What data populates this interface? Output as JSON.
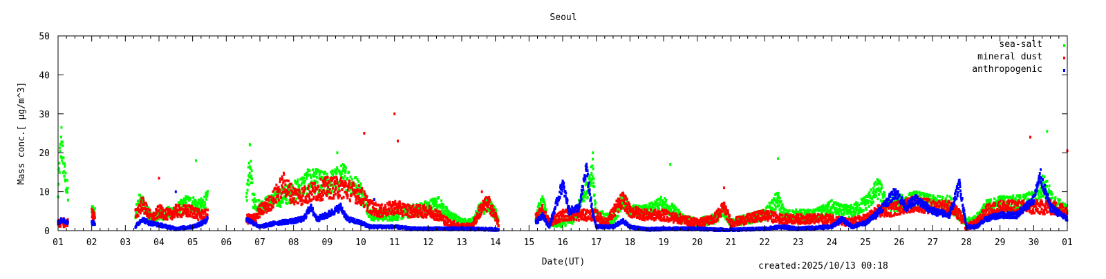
{
  "chart_data": {
    "type": "scatter",
    "title": "Seoul",
    "xlabel": "Date(UT)",
    "ylabel": "Mass conc.[ μg/m^3]",
    "footer": "created:2025/10/13 00:18",
    "xlim": [
      1,
      31
    ],
    "ylim": [
      0,
      50
    ],
    "yticks": [
      0,
      10,
      20,
      30,
      40,
      50
    ],
    "xtick_labels": [
      "01",
      "02",
      "03",
      "04",
      "05",
      "06",
      "07",
      "08",
      "09",
      "10",
      "11",
      "12",
      "13",
      "14",
      "15",
      "16",
      "17",
      "18",
      "19",
      "20",
      "21",
      "22",
      "23",
      "24",
      "25",
      "26",
      "27",
      "28",
      "29",
      "30",
      "01"
    ],
    "grid": false,
    "legend_position": "top-right",
    "series": [
      {
        "name": "sea-salt",
        "color": "#00ff00",
        "segments": [
          [
            [
              1.0,
              8
            ],
            [
              1.05,
              18
            ],
            [
              1.1,
              22
            ],
            [
              1.2,
              14
            ],
            [
              1.3,
              9
            ]
          ],
          [
            [
              2.0,
              5
            ],
            [
              2.1,
              5
            ]
          ],
          [
            [
              3.3,
              4
            ],
            [
              3.4,
              8
            ],
            [
              3.5,
              7
            ],
            [
              3.8,
              3
            ],
            [
              4.0,
              4
            ],
            [
              4.5,
              5
            ],
            [
              4.8,
              7
            ],
            [
              5.0,
              7
            ],
            [
              5.2,
              6
            ],
            [
              5.45,
              8
            ]
          ],
          [
            [
              6.6,
              8
            ],
            [
              6.7,
              18
            ],
            [
              6.8,
              8
            ],
            [
              7.0,
              6
            ],
            [
              7.5,
              8
            ],
            [
              8.0,
              10
            ],
            [
              8.5,
              13
            ],
            [
              9.0,
              12
            ],
            [
              9.5,
              14
            ],
            [
              10.0,
              10
            ],
            [
              10.3,
              4
            ],
            [
              10.6,
              4
            ],
            [
              11.0,
              4
            ],
            [
              11.5,
              5
            ],
            [
              12.0,
              6
            ],
            [
              12.3,
              7
            ],
            [
              12.6,
              4
            ],
            [
              13.0,
              2
            ],
            [
              13.3,
              2
            ],
            [
              13.5,
              5
            ],
            [
              13.8,
              7
            ],
            [
              14.1,
              3
            ]
          ],
          [
            [
              15.2,
              4
            ],
            [
              15.4,
              7
            ],
            [
              15.6,
              2
            ],
            [
              16.0,
              2
            ],
            [
              16.3,
              3
            ],
            [
              16.6,
              8
            ],
            [
              16.9,
              15
            ],
            [
              17.0,
              4
            ],
            [
              17.5,
              3
            ],
            [
              17.8,
              8
            ],
            [
              18.0,
              5
            ],
            [
              18.5,
              5
            ],
            [
              19.0,
              7
            ],
            [
              19.3,
              5
            ],
            [
              19.6,
              3
            ],
            [
              20.0,
              2
            ],
            [
              20.5,
              3
            ],
            [
              20.8,
              5
            ],
            [
              21.0,
              2
            ],
            [
              21.5,
              3
            ],
            [
              22.0,
              4
            ],
            [
              22.4,
              8
            ],
            [
              22.6,
              4
            ],
            [
              23.0,
              4
            ],
            [
              23.5,
              4
            ],
            [
              24.0,
              6
            ],
            [
              24.3,
              5
            ],
            [
              24.6,
              5
            ],
            [
              25.0,
              7
            ],
            [
              25.4,
              11
            ],
            [
              25.6,
              7
            ],
            [
              26.0,
              7
            ],
            [
              26.5,
              8
            ],
            [
              27.0,
              7
            ],
            [
              27.5,
              7
            ],
            [
              27.8,
              4
            ],
            [
              28.0,
              2
            ],
            [
              28.3,
              3
            ],
            [
              28.6,
              6
            ],
            [
              29.0,
              7
            ],
            [
              29.5,
              7
            ],
            [
              30.0,
              8
            ],
            [
              30.3,
              12
            ],
            [
              30.6,
              7
            ],
            [
              31.0,
              5
            ]
          ]
        ],
        "outliers": [
          [
            1.1,
            26.5
          ],
          [
            5.1,
            18
          ],
          [
            6.7,
            22
          ],
          [
            9.3,
            20
          ],
          [
            16.9,
            20
          ],
          [
            19.2,
            17
          ],
          [
            22.4,
            18.5
          ],
          [
            30.4,
            25.5
          ]
        ]
      },
      {
        "name": "mineral dust",
        "color": "#ff0000",
        "segments": [
          [
            [
              1.0,
              2
            ],
            [
              1.3,
              2
            ]
          ],
          [
            [
              2.0,
              5
            ],
            [
              2.1,
              3
            ]
          ],
          [
            [
              3.3,
              4
            ],
            [
              3.5,
              7
            ],
            [
              3.8,
              3
            ],
            [
              4.0,
              5
            ],
            [
              4.3,
              4
            ],
            [
              4.5,
              5
            ],
            [
              5.0,
              5
            ],
            [
              5.2,
              4
            ],
            [
              5.45,
              4
            ]
          ],
          [
            [
              6.6,
              3
            ],
            [
              6.8,
              3
            ],
            [
              7.0,
              5
            ],
            [
              7.3,
              7
            ],
            [
              7.7,
              12
            ],
            [
              8.0,
              9
            ],
            [
              8.3,
              9
            ],
            [
              8.6,
              10
            ],
            [
              9.0,
              11
            ],
            [
              9.5,
              11
            ],
            [
              10.0,
              9
            ],
            [
              10.3,
              6
            ],
            [
              10.6,
              5
            ],
            [
              11.0,
              6
            ],
            [
              11.5,
              5
            ],
            [
              12.0,
              5
            ],
            [
              12.3,
              4
            ],
            [
              12.6,
              2
            ],
            [
              13.0,
              1
            ],
            [
              13.3,
              1
            ],
            [
              13.6,
              6
            ],
            [
              13.8,
              7
            ],
            [
              14.1,
              2
            ]
          ],
          [
            [
              15.2,
              3
            ],
            [
              15.4,
              5
            ],
            [
              15.6,
              2
            ],
            [
              16.0,
              4
            ],
            [
              16.5,
              4
            ],
            [
              17.0,
              4
            ],
            [
              17.3,
              2
            ],
            [
              17.6,
              6
            ],
            [
              17.8,
              8
            ],
            [
              18.0,
              5
            ],
            [
              18.5,
              4
            ],
            [
              19.0,
              4
            ],
            [
              19.5,
              3
            ],
            [
              20.0,
              2
            ],
            [
              20.5,
              3
            ],
            [
              20.8,
              6
            ],
            [
              21.0,
              2
            ],
            [
              21.5,
              3
            ],
            [
              22.0,
              4
            ],
            [
              22.5,
              3
            ],
            [
              23.0,
              3
            ],
            [
              23.5,
              3
            ],
            [
              24.0,
              3
            ],
            [
              24.5,
              2
            ],
            [
              25.0,
              3
            ],
            [
              25.4,
              5
            ],
            [
              25.7,
              5
            ],
            [
              26.0,
              6
            ],
            [
              26.5,
              7
            ],
            [
              27.0,
              6
            ],
            [
              27.5,
              6
            ],
            [
              27.8,
              4
            ],
            [
              28.0,
              1
            ],
            [
              28.3,
              2
            ],
            [
              28.6,
              5
            ],
            [
              29.0,
              6
            ],
            [
              29.5,
              6
            ],
            [
              30.0,
              6
            ],
            [
              30.5,
              6
            ],
            [
              31.0,
              5
            ]
          ]
        ],
        "outliers": [
          [
            4.0,
            13.5
          ],
          [
            10.1,
            25
          ],
          [
            11.0,
            30
          ],
          [
            11.1,
            23
          ],
          [
            13.6,
            10
          ],
          [
            20.8,
            11
          ],
          [
            29.9,
            24
          ],
          [
            31.0,
            20.5
          ]
        ]
      },
      {
        "name": "anthropogenic",
        "color": "#0000ff",
        "segments": [
          [
            [
              1.0,
              2
            ],
            [
              1.1,
              3
            ],
            [
              1.3,
              2
            ]
          ],
          [
            [
              2.0,
              2
            ],
            [
              2.1,
              2
            ]
          ],
          [
            [
              3.3,
              1
            ],
            [
              3.5,
              3
            ],
            [
              3.7,
              2
            ],
            [
              4.0,
              1.5
            ],
            [
              4.5,
              0.5
            ],
            [
              5.0,
              1
            ],
            [
              5.3,
              2
            ],
            [
              5.45,
              3
            ]
          ],
          [
            [
              6.6,
              3
            ],
            [
              6.8,
              2
            ],
            [
              7.0,
              1
            ],
            [
              7.5,
              2
            ],
            [
              8.0,
              2.5
            ],
            [
              8.3,
              3
            ],
            [
              8.5,
              6
            ],
            [
              8.7,
              3
            ],
            [
              9.0,
              4
            ],
            [
              9.4,
              6
            ],
            [
              9.6,
              3
            ],
            [
              10.0,
              2
            ],
            [
              10.3,
              1
            ],
            [
              10.6,
              1
            ],
            [
              11.0,
              1
            ],
            [
              11.5,
              0.5
            ],
            [
              12.0,
              0.5
            ],
            [
              13.0,
              0.5
            ],
            [
              14.1,
              0.3
            ]
          ],
          [
            [
              15.2,
              2
            ],
            [
              15.4,
              4
            ],
            [
              15.6,
              1
            ],
            [
              16.0,
              12
            ],
            [
              16.2,
              5
            ],
            [
              16.5,
              6
            ],
            [
              16.7,
              16
            ],
            [
              16.9,
              4
            ],
            [
              17.0,
              1
            ],
            [
              17.5,
              1
            ],
            [
              17.8,
              2.5
            ],
            [
              18.0,
              1
            ],
            [
              18.5,
              0.3
            ],
            [
              19.0,
              0.5
            ],
            [
              20.0,
              0.5
            ],
            [
              20.5,
              0.3
            ],
            [
              21.0,
              0.2
            ],
            [
              22.0,
              0.5
            ],
            [
              22.5,
              1
            ],
            [
              23.0,
              0.5
            ],
            [
              24.0,
              1
            ],
            [
              24.3,
              3
            ],
            [
              24.6,
              1
            ],
            [
              25.0,
              2
            ],
            [
              25.3,
              4
            ],
            [
              25.6,
              7
            ],
            [
              25.9,
              10
            ],
            [
              26.2,
              6
            ],
            [
              26.5,
              8
            ],
            [
              27.0,
              5
            ],
            [
              27.5,
              4
            ],
            [
              27.8,
              12
            ],
            [
              28.0,
              1
            ],
            [
              28.3,
              1
            ],
            [
              28.6,
              3
            ],
            [
              29.0,
              4
            ],
            [
              29.5,
              4
            ],
            [
              30.0,
              8
            ],
            [
              30.2,
              14
            ],
            [
              30.5,
              6
            ],
            [
              31.0,
              3
            ]
          ]
        ],
        "outliers": [
          [
            4.5,
            10
          ],
          [
            10.4,
            8
          ]
        ]
      }
    ]
  }
}
